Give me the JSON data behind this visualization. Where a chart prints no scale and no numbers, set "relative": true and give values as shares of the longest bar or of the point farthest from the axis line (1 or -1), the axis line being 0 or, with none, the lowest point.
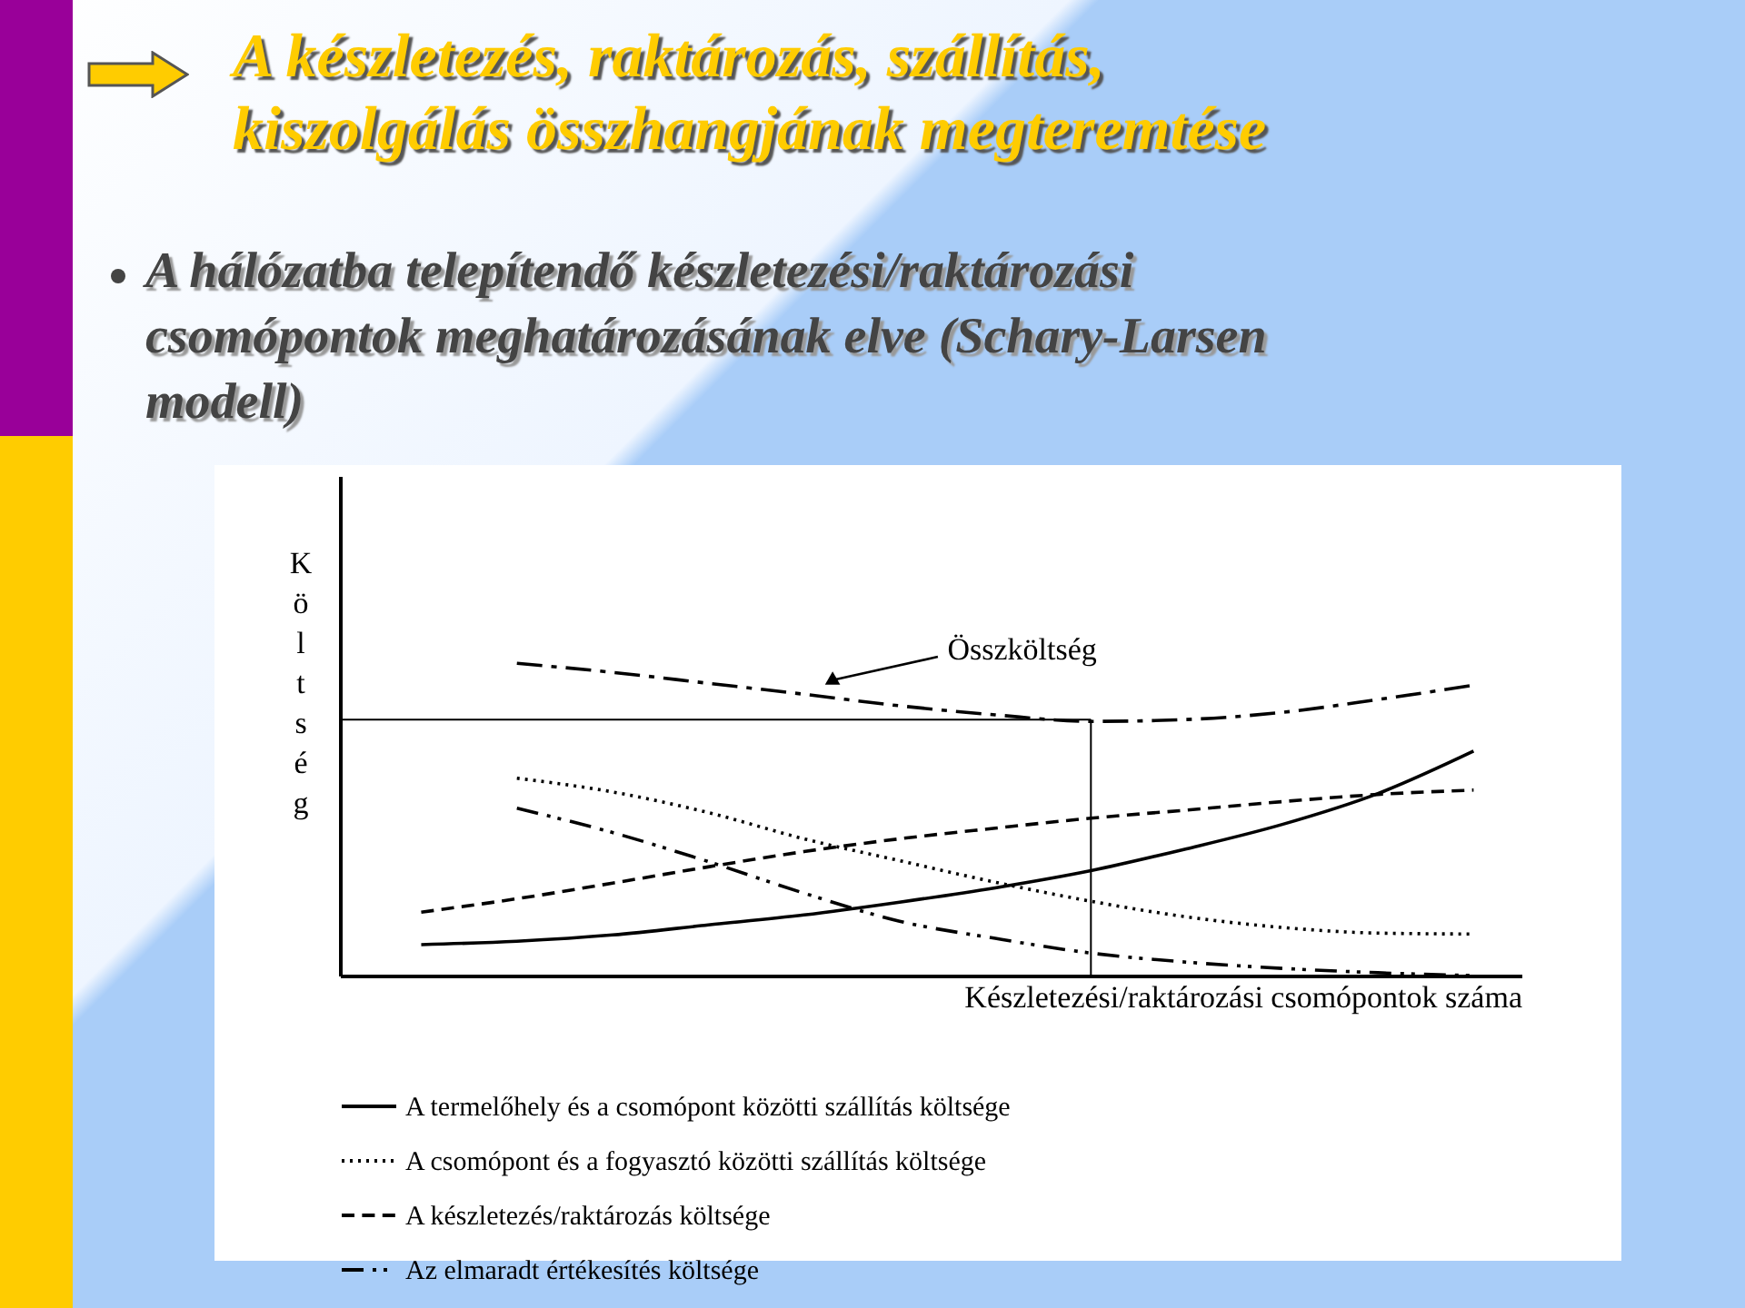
{
  "chart_data": {
    "type": "line",
    "title": "A készletezés, raktározás, szállítás, kiszolgálás összhangjának megteremtése",
    "subtitle": "A hálózatba telepítendő készletezési/raktározási csomópontok meghatározásának elve (Schary-Larsen modell)",
    "xlabel": "Készletezési/raktározási csomópontok száma",
    "ylabel": "Költség",
    "relative": true,
    "categories": [
      null,
      null,
      null,
      null,
      null,
      null,
      null,
      null,
      null,
      null,
      null,
      null
    ],
    "series": [
      {
        "name": "A termelőhely és a csomópont közötti szállítás költsége",
        "color": "#000000",
        "line_style": "solid",
        "values": [
          0.099,
          0.11,
          0.13,
          0.162,
          0.194,
          0.235,
          0.281,
          0.336,
          0.406,
          0.484,
          0.583,
          0.719
        ]
      },
      {
        "name": "A csomópont és a fogyasztó közötti szállítás költsége",
        "color": "#000000",
        "line_style": "dotted",
        "values": [
          null,
          0.632,
          0.588,
          0.522,
          0.438,
          0.368,
          0.299,
          0.238,
          0.188,
          0.154,
          0.136,
          0.133
        ]
      },
      {
        "name": "A készletezés/raktározás költsége",
        "color": "#000000",
        "line_style": "dashed",
        "values": [
          0.203,
          0.246,
          0.296,
          0.348,
          0.397,
          0.438,
          0.472,
          0.504,
          0.53,
          0.557,
          0.58,
          0.594
        ]
      },
      {
        "name": "Az elmaradt értékesítés költsége",
        "color": "#000000",
        "line_style": "dashdotdot",
        "values": [
          null,
          0.536,
          0.458,
          0.365,
          0.264,
          0.174,
          0.119,
          0.072,
          0.043,
          0.023,
          0.009,
          0.0
        ]
      },
      {
        "color": "#000000",
        "line_style": "dashdot",
        "values": [
          null,
          1.0,
          0.971,
          0.936,
          0.901,
          0.864,
          0.835,
          0.814,
          0.82,
          0.843,
          0.884,
          0.93
        ]
      }
    ],
    "annotations": [
      "Összköltség"
    ],
    "ref_lines": [
      {
        "axis": "y",
        "value": 0.82,
        "color": "#000000"
      }
    ],
    "legend": "bottom",
    "grid": false
  }
}
